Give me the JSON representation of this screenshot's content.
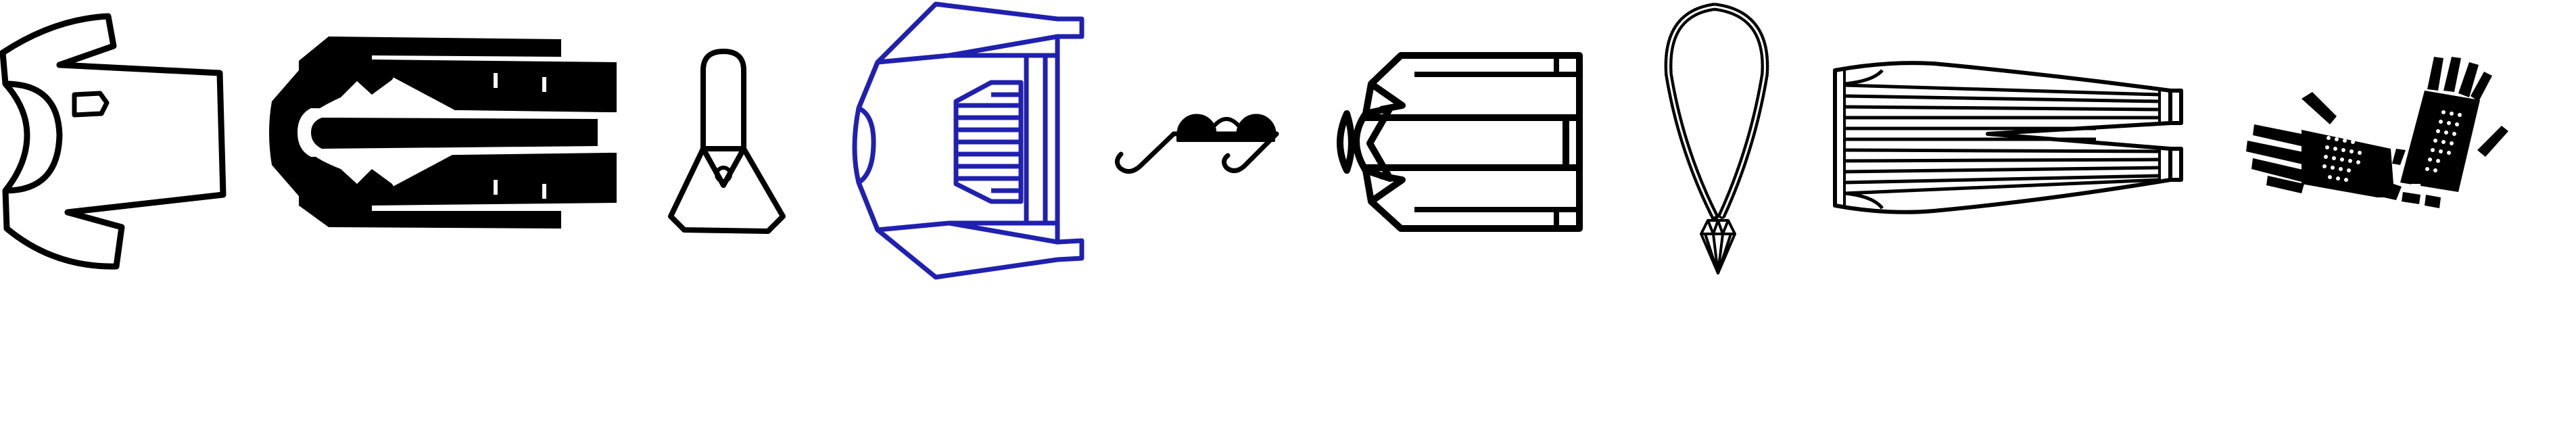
{
  "icons": [
    {
      "name": "shirt-icon",
      "color": "#000000"
    },
    {
      "name": "coat-icon",
      "color": "#000000"
    },
    {
      "name": "dress-icon",
      "color": "#000000"
    },
    {
      "name": "jacket-icon",
      "color": "#2020b0"
    },
    {
      "name": "eyeglasses-icon",
      "color": "#000000"
    },
    {
      "name": "jacket-icon",
      "color": "#000000"
    },
    {
      "name": "necklace-icon",
      "color": "#000000"
    },
    {
      "name": "trousers-icon",
      "color": "#000000"
    },
    {
      "name": "gloves-icon",
      "color": "#000000"
    }
  ],
  "palette": {
    "background": "#ffffff",
    "stroke": "#000000",
    "accent": "#2020b0"
  }
}
